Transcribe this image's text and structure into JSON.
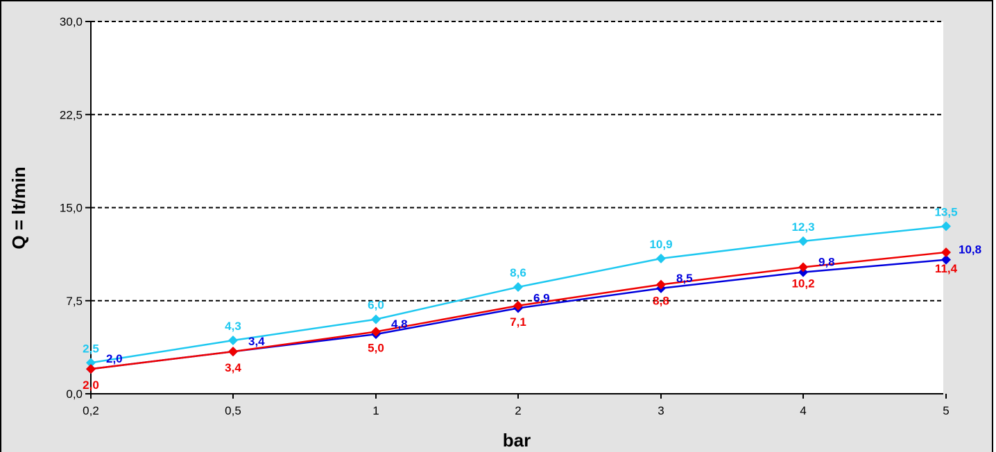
{
  "chart_data": {
    "type": "line",
    "title": "",
    "xlabel": "bar",
    "ylabel": "Q = lt/min",
    "categories": [
      "0,2",
      "0,5",
      "1",
      "2",
      "3",
      "4",
      "5"
    ],
    "y_ticks": [
      "0,0",
      "7,5",
      "15,0",
      "22,5",
      "30,0"
    ],
    "ylim": [
      0,
      30
    ],
    "grid": "horizontal dashed",
    "legend": "none",
    "series": [
      {
        "color": "#1ec8f0",
        "values": [
          2.5,
          4.3,
          6.0,
          8.6,
          10.9,
          12.3,
          13.5
        ],
        "labels": [
          "2,5",
          "4,3",
          "6,0",
          "8,6",
          "10,9",
          "12,3",
          "13,5"
        ]
      },
      {
        "color": "#0000dd",
        "values": [
          2.0,
          3.4,
          4.8,
          6.9,
          8.5,
          9.8,
          10.8
        ],
        "labels": [
          "2,0",
          "3,4",
          "4,8",
          "6,9",
          "8,5",
          "9,8",
          "10,8"
        ]
      },
      {
        "color": "#ee0000",
        "values": [
          2.0,
          3.4,
          5.0,
          7.1,
          8.8,
          10.2,
          11.4
        ],
        "labels": [
          "2,0",
          "3,4",
          "5,0",
          "7,1",
          "8,8",
          "10,2",
          "11,4"
        ]
      }
    ]
  }
}
